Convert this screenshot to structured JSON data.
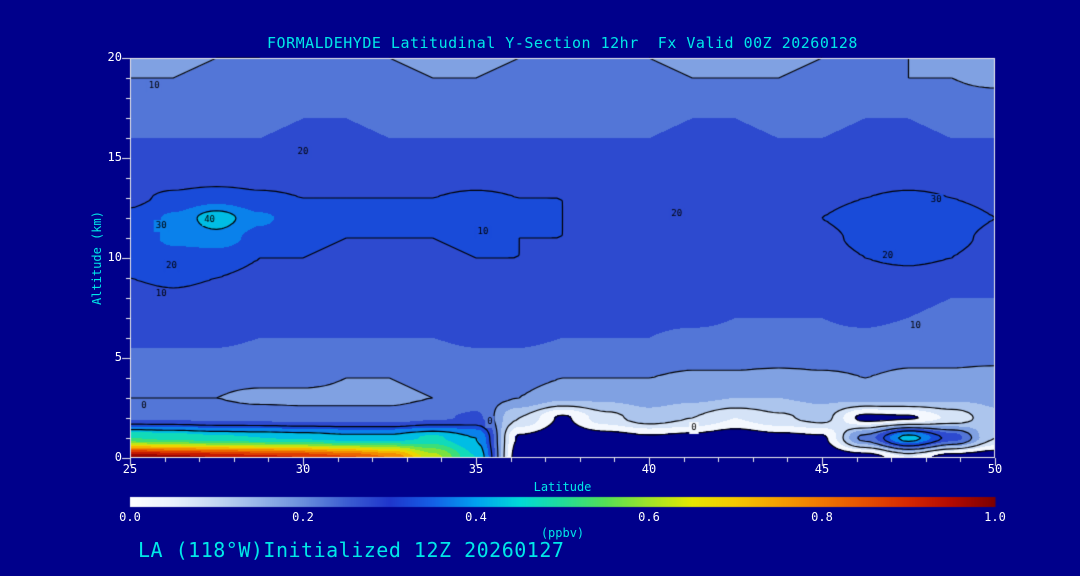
{
  "page": {
    "background": "#00008B",
    "accent": "#00E8E8",
    "tick_text_color": "#FFFFFF"
  },
  "header": {
    "title": "FORMALDEHYDE Latitudinal Y-Section 12hr  Fx Valid 00Z 20260128"
  },
  "footer": {
    "caption": "LA (118°W)Initialized 12Z 20260127"
  },
  "chart_data": {
    "type": "heatmap",
    "title": "FORMALDEHYDE Latitudinal Y-Section 12hr  Fx Valid 00Z 20260128",
    "xlabel": "Latitude",
    "ylabel": "Altitude (km)",
    "colorbar_label": "(ppbv)",
    "xlim": [
      25,
      50
    ],
    "ylim": [
      0,
      20
    ],
    "clim": [
      0,
      1
    ],
    "x_ticks": [
      "25",
      "30",
      "35",
      "40",
      "45",
      "50"
    ],
    "y_ticks": [
      "0",
      "5",
      "10",
      "15",
      "20"
    ],
    "colorbar_ticks": [
      "0.0",
      "0.2",
      "0.4",
      "0.6",
      "0.8",
      "1.0"
    ],
    "fill_interval": 0.05,
    "line_levels": [
      0,
      10,
      20,
      30,
      40
    ],
    "line_units_scale": 100,
    "lats": [
      25,
      26.25,
      27.5,
      28.75,
      30,
      31.25,
      32.5,
      33.75,
      35,
      36.25,
      37.5,
      38.75,
      40,
      41.25,
      42.5,
      43.75,
      45,
      46.25,
      47.5,
      48.75,
      50
    ],
    "alts": [
      0,
      1,
      2,
      3,
      4,
      5,
      6,
      7,
      8,
      9,
      10,
      11,
      12,
      13,
      14,
      15,
      16,
      17,
      18,
      19,
      20
    ],
    "values": [
      [
        1.0,
        0.97,
        0.95,
        0.92,
        0.9,
        0.86,
        0.8,
        0.62,
        0.45,
        -0.04,
        -0.06,
        -0.06,
        -0.05,
        -0.06,
        -0.06,
        -0.06,
        -0.05,
        -0.04,
        0.05,
        -0.04,
        -0.05
      ],
      [
        0.5,
        0.48,
        0.46,
        0.45,
        0.44,
        0.42,
        0.42,
        0.46,
        0.4,
        -0.01,
        -0.04,
        -0.03,
        -0.01,
        -0.02,
        -0.04,
        -0.02,
        -0.01,
        0.22,
        0.43,
        0.28,
        0.1
      ],
      [
        0.24,
        0.24,
        0.23,
        0.23,
        0.22,
        0.22,
        0.22,
        0.24,
        0.26,
        0.1,
        -0.01,
        0.08,
        0.13,
        0.1,
        0.05,
        0.09,
        0.12,
        -0.02,
        -0.01,
        0.06,
        0.14
      ],
      [
        0.2,
        0.2,
        0.2,
        0.19,
        0.19,
        0.19,
        0.19,
        0.2,
        0.22,
        0.2,
        0.16,
        0.16,
        0.17,
        0.16,
        0.15,
        0.15,
        0.16,
        0.17,
        0.17,
        0.16,
        0.16
      ],
      [
        0.22,
        0.22,
        0.21,
        0.21,
        0.21,
        0.2,
        0.2,
        0.21,
        0.22,
        0.22,
        0.2,
        0.2,
        0.2,
        0.19,
        0.19,
        0.18,
        0.19,
        0.2,
        0.19,
        0.19,
        0.18
      ],
      [
        0.24,
        0.24,
        0.24,
        0.23,
        0.23,
        0.23,
        0.23,
        0.23,
        0.24,
        0.24,
        0.23,
        0.23,
        0.23,
        0.22,
        0.22,
        0.22,
        0.22,
        0.22,
        0.21,
        0.21,
        0.21
      ],
      [
        0.26,
        0.26,
        0.26,
        0.25,
        0.25,
        0.25,
        0.25,
        0.25,
        0.26,
        0.26,
        0.25,
        0.25,
        0.25,
        0.24,
        0.24,
        0.24,
        0.24,
        0.24,
        0.23,
        0.23,
        0.23
      ],
      [
        0.27,
        0.27,
        0.27,
        0.26,
        0.26,
        0.26,
        0.26,
        0.26,
        0.27,
        0.27,
        0.26,
        0.26,
        0.26,
        0.26,
        0.25,
        0.25,
        0.25,
        0.26,
        0.25,
        0.24,
        0.24
      ],
      [
        0.28,
        0.29,
        0.28,
        0.28,
        0.27,
        0.27,
        0.27,
        0.27,
        0.28,
        0.28,
        0.27,
        0.27,
        0.27,
        0.27,
        0.26,
        0.26,
        0.26,
        0.27,
        0.26,
        0.25,
        0.25
      ],
      [
        0.3,
        0.31,
        0.3,
        0.29,
        0.29,
        0.28,
        0.28,
        0.28,
        0.29,
        0.29,
        0.28,
        0.28,
        0.28,
        0.28,
        0.27,
        0.27,
        0.27,
        0.28,
        0.28,
        0.27,
        0.26
      ],
      [
        0.31,
        0.33,
        0.32,
        0.3,
        0.3,
        0.29,
        0.29,
        0.29,
        0.3,
        0.3,
        0.29,
        0.29,
        0.29,
        0.29,
        0.28,
        0.28,
        0.28,
        0.3,
        0.31,
        0.3,
        0.28
      ],
      [
        0.32,
        0.36,
        0.38,
        0.33,
        0.31,
        0.3,
        0.3,
        0.3,
        0.31,
        0.3,
        0.3,
        0.29,
        0.29,
        0.3,
        0.29,
        0.29,
        0.29,
        0.31,
        0.33,
        0.31,
        0.29
      ],
      [
        0.31,
        0.36,
        0.43,
        0.36,
        0.32,
        0.31,
        0.31,
        0.31,
        0.32,
        0.31,
        0.3,
        0.3,
        0.29,
        0.3,
        0.3,
        0.3,
        0.3,
        0.32,
        0.34,
        0.32,
        0.3
      ],
      [
        0.29,
        0.31,
        0.33,
        0.31,
        0.3,
        0.3,
        0.3,
        0.3,
        0.31,
        0.3,
        0.3,
        0.29,
        0.29,
        0.29,
        0.29,
        0.29,
        0.29,
        0.3,
        0.31,
        0.3,
        0.29
      ],
      [
        0.27,
        0.28,
        0.28,
        0.28,
        0.28,
        0.28,
        0.28,
        0.28,
        0.28,
        0.28,
        0.28,
        0.28,
        0.27,
        0.27,
        0.27,
        0.27,
        0.27,
        0.28,
        0.28,
        0.28,
        0.27
      ],
      [
        0.26,
        0.26,
        0.26,
        0.26,
        0.27,
        0.27,
        0.26,
        0.26,
        0.26,
        0.26,
        0.26,
        0.26,
        0.26,
        0.26,
        0.26,
        0.26,
        0.26,
        0.27,
        0.27,
        0.27,
        0.26
      ],
      [
        0.25,
        0.25,
        0.25,
        0.25,
        0.26,
        0.26,
        0.25,
        0.25,
        0.25,
        0.25,
        0.25,
        0.25,
        0.25,
        0.26,
        0.26,
        0.25,
        0.25,
        0.26,
        0.26,
        0.25,
        0.25
      ],
      [
        0.24,
        0.24,
        0.24,
        0.24,
        0.25,
        0.25,
        0.24,
        0.24,
        0.24,
        0.24,
        0.24,
        0.24,
        0.24,
        0.25,
        0.25,
        0.24,
        0.24,
        0.25,
        0.25,
        0.24,
        0.24
      ],
      [
        0.21,
        0.22,
        0.22,
        0.23,
        0.24,
        0.23,
        0.22,
        0.21,
        0.21,
        0.22,
        0.23,
        0.24,
        0.23,
        0.22,
        0.22,
        0.21,
        0.22,
        0.23,
        0.22,
        0.21,
        0.21
      ],
      [
        0.2,
        0.2,
        0.21,
        0.21,
        0.22,
        0.22,
        0.21,
        0.2,
        0.2,
        0.21,
        0.21,
        0.22,
        0.21,
        0.2,
        0.2,
        0.2,
        0.21,
        0.21,
        0.2,
        0.2,
        0.19
      ],
      [
        0.19,
        0.19,
        0.2,
        0.2,
        0.21,
        0.21,
        0.2,
        0.19,
        0.19,
        0.2,
        0.21,
        0.21,
        0.2,
        0.19,
        0.19,
        0.19,
        0.2,
        0.21,
        0.2,
        0.19,
        0.19
      ]
    ],
    "contour_labels": [
      {
        "text": "10",
        "lat": 25.7,
        "alt": 18.6
      },
      {
        "text": "20",
        "lat": 30.0,
        "alt": 15.3
      },
      {
        "text": "30",
        "lat": 48.3,
        "alt": 12.9
      },
      {
        "text": "40",
        "lat": 27.3,
        "alt": 11.9
      },
      {
        "text": "30",
        "lat": 25.9,
        "alt": 11.6
      },
      {
        "text": "10",
        "lat": 35.2,
        "alt": 11.3
      },
      {
        "text": "20",
        "lat": 40.8,
        "alt": 12.2
      },
      {
        "text": "20",
        "lat": 46.9,
        "alt": 10.1
      },
      {
        "text": "20",
        "lat": 26.2,
        "alt": 9.6
      },
      {
        "text": "10",
        "lat": 25.9,
        "alt": 8.2
      },
      {
        "text": "10",
        "lat": 47.7,
        "alt": 6.6
      },
      {
        "text": "0",
        "lat": 25.4,
        "alt": 2.6
      },
      {
        "text": "0",
        "lat": 35.4,
        "alt": 1.8
      },
      {
        "text": "0",
        "lat": 41.3,
        "alt": 1.5
      }
    ],
    "colormap": [
      [
        0.0,
        "#FFFFFF"
      ],
      [
        0.05,
        "#E8F0FC"
      ],
      [
        0.1,
        "#C2D6F2"
      ],
      [
        0.15,
        "#96B4E8"
      ],
      [
        0.2,
        "#6A8EDC"
      ],
      [
        0.25,
        "#3C5ED2"
      ],
      [
        0.3,
        "#1F36CC"
      ],
      [
        0.35,
        "#1460E6"
      ],
      [
        0.4,
        "#00A2F0"
      ],
      [
        0.45,
        "#00D8D8"
      ],
      [
        0.5,
        "#22DC9A"
      ],
      [
        0.55,
        "#55E055"
      ],
      [
        0.6,
        "#A0E428"
      ],
      [
        0.65,
        "#E6E600"
      ],
      [
        0.7,
        "#F5C800"
      ],
      [
        0.75,
        "#F5A000"
      ],
      [
        0.8,
        "#F07800"
      ],
      [
        0.85,
        "#E65000"
      ],
      [
        0.9,
        "#D72800"
      ],
      [
        0.95,
        "#B40A00"
      ],
      [
        1.0,
        "#7D0000"
      ]
    ]
  }
}
